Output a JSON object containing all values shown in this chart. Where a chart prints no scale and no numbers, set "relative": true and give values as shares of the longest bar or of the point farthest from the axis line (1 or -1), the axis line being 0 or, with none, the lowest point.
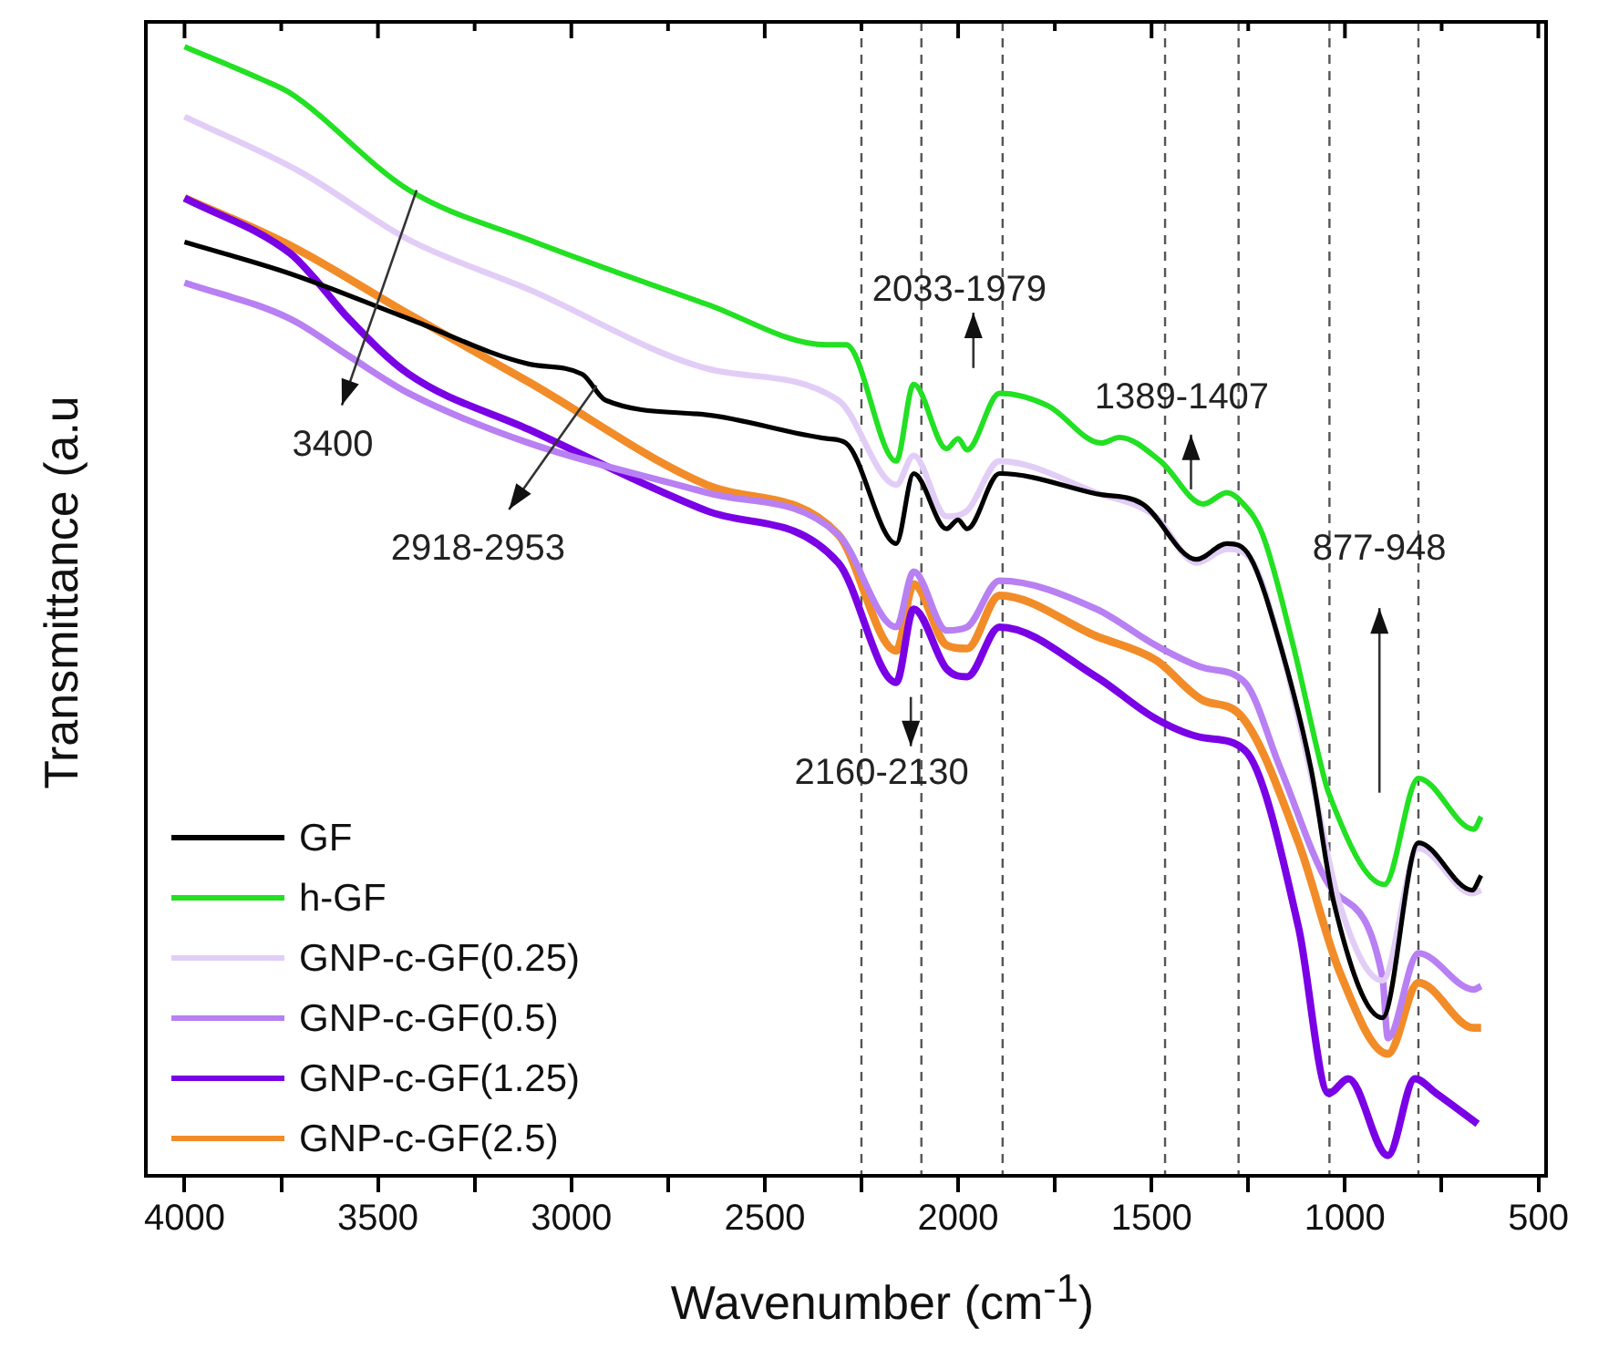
{
  "chart_data": {
    "type": "line",
    "xlabel": "Wavenumber (cm$^{-1}$)",
    "ylabel": "Transmittance (a.u",
    "relative": true,
    "xlim": [
      4100,
      480
    ],
    "xticks": [
      4000,
      {
        "value": 3750,
        "label": null
      },
      3500,
      {
        "value": 3250,
        "label": null
      },
      3000,
      {
        "value": 2750,
        "label": null
      },
      2500,
      {
        "value": 2250,
        "label": null
      },
      2000,
      {
        "value": 1750,
        "label": null
      },
      1500,
      {
        "value": 1250,
        "label": null
      },
      1000,
      {
        "value": 750,
        "label": null
      },
      500
    ],
    "legend": "bottom left",
    "grid": false,
    "marker": "none",
    "line_style": "solid",
    "series": [
      {
        "name": "GF",
        "color": "#000000",
        "x": [
          4000,
          3727,
          3420,
          3110,
          2972,
          2912,
          2650,
          2340,
          2290,
          2160,
          2115,
          2030,
          2000,
          1977,
          1893,
          1643,
          1523,
          1384,
          1305,
          1245,
          1167,
          1088,
          1028,
          903,
          810,
          671,
          648
        ],
        "values": [
          0.827,
          0.799,
          0.759,
          0.719,
          0.71,
          0.687,
          0.674,
          0.653,
          0.649,
          0.56,
          0.622,
          0.573,
          0.581,
          0.573,
          0.622,
          0.604,
          0.595,
          0.546,
          0.56,
          0.548,
          0.47,
          0.361,
          0.241,
          0.14,
          0.295,
          0.253,
          0.266
        ]
      },
      {
        "name": "h-GF",
        "color": "#22e022",
        "x": [
          4000,
          3800,
          3727,
          3420,
          3110,
          2650,
          2340,
          2290,
          2160,
          2115,
          2030,
          2000,
          1977,
          1893,
          1768,
          1630,
          1583,
          1477,
          1366,
          1305,
          1268,
          1213,
          1134,
          1060,
          1042,
          898,
          810,
          667,
          648
        ],
        "values": [
          1.0,
          0.971,
          0.959,
          0.873,
          0.829,
          0.772,
          0.736,
          0.736,
          0.633,
          0.701,
          0.644,
          0.653,
          0.643,
          0.693,
          0.682,
          0.649,
          0.654,
          0.633,
          0.595,
          0.605,
          0.597,
          0.568,
          0.47,
          0.361,
          0.339,
          0.258,
          0.352,
          0.307,
          0.318
        ]
      },
      {
        "name": "GNP-c-GF(0.25)",
        "color": "#e2cdf7",
        "x": [
          4000,
          3700,
          3420,
          3110,
          2650,
          2310,
          2160,
          2115,
          2030,
          1977,
          1893,
          1643,
          1490,
          1384,
          1305,
          1245,
          1167,
          1088,
          1014,
          903,
          810,
          671,
          648
        ],
        "values": [
          0.938,
          0.889,
          0.829,
          0.785,
          0.715,
          0.687,
          0.612,
          0.638,
          0.584,
          0.589,
          0.633,
          0.605,
          0.584,
          0.543,
          0.555,
          0.547,
          0.47,
          0.356,
          0.241,
          0.173,
          0.29,
          0.25,
          0.253
        ]
      },
      {
        "name": "GNP-c-GF(0.5)",
        "color": "#b880f2",
        "x": [
          4000,
          3727,
          3575,
          3420,
          3110,
          2650,
          2310,
          2160,
          2115,
          2030,
          1977,
          1893,
          1643,
          1490,
          1366,
          1259,
          1167,
          1042,
          903,
          889,
          810,
          667,
          648
        ],
        "values": [
          0.791,
          0.759,
          0.726,
          0.693,
          0.649,
          0.605,
          0.568,
          0.486,
          0.535,
          0.483,
          0.486,
          0.527,
          0.502,
          0.47,
          0.45,
          0.437,
          0.361,
          0.258,
          0.176,
          0.122,
          0.197,
          0.165,
          0.168
        ]
      },
      {
        "name": "GNP-c-GF(1.25)",
        "color": "#7a00e6",
        "x": [
          4000,
          3727,
          3667,
          3575,
          3420,
          3110,
          2650,
          2310,
          2160,
          2115,
          2030,
          1977,
          1893,
          1643,
          1490,
          1366,
          1259,
          1120,
          1042,
          991,
          889,
          819,
          764,
          657
        ],
        "values": [
          0.866,
          0.817,
          0.796,
          0.759,
          0.71,
          0.661,
          0.589,
          0.543,
          0.437,
          0.502,
          0.449,
          0.442,
          0.486,
          0.442,
          0.405,
          0.388,
          0.377,
          0.22,
          0.073,
          0.086,
          0.018,
          0.086,
          0.073,
          0.046
        ]
      },
      {
        "name": "GNP-c-GF(2.5)",
        "color": "#f28c28",
        "x": [
          4000,
          3727,
          3420,
          3110,
          2650,
          2310,
          2160,
          2115,
          2030,
          1977,
          1893,
          1643,
          1490,
          1366,
          1273,
          1120,
          1014,
          889,
          810,
          667,
          648
        ],
        "values": [
          0.866,
          0.824,
          0.763,
          0.703,
          0.612,
          0.568,
          0.465,
          0.524,
          0.47,
          0.467,
          0.514,
          0.478,
          0.457,
          0.421,
          0.409,
          0.295,
          0.181,
          0.108,
          0.171,
          0.131,
          0.131
        ]
      }
    ],
    "ref_lines": [
      {
        "axis": "x",
        "value": 2250,
        "color": "#555555",
        "line_style": "dashed"
      },
      {
        "axis": "x",
        "value": 2095,
        "color": "#555555",
        "line_style": "dashed"
      },
      {
        "axis": "x",
        "value": 1885,
        "color": "#555555",
        "line_style": "dashed"
      },
      {
        "axis": "x",
        "value": 1465,
        "color": "#555555",
        "line_style": "dashed"
      },
      {
        "axis": "x",
        "value": 1275,
        "color": "#555555",
        "line_style": "dashed"
      },
      {
        "axis": "x",
        "value": 1040,
        "color": "#555555",
        "line_style": "dashed"
      },
      {
        "axis": "x",
        "value": 810,
        "color": "#555555",
        "line_style": "dashed"
      }
    ],
    "annotations": [
      {
        "text": "3400",
        "x": 3400,
        "y": 0.873
      },
      {
        "text": "2918-2953",
        "x": 2935,
        "y": 0.7
      },
      "2033-1979",
      {
        "text": "1389-1407",
        "x": 1398,
        "y": 0.608
      },
      {
        "text": "2160-2130",
        "x": 2160,
        "y": 0.437
      },
      "877-948"
    ]
  }
}
